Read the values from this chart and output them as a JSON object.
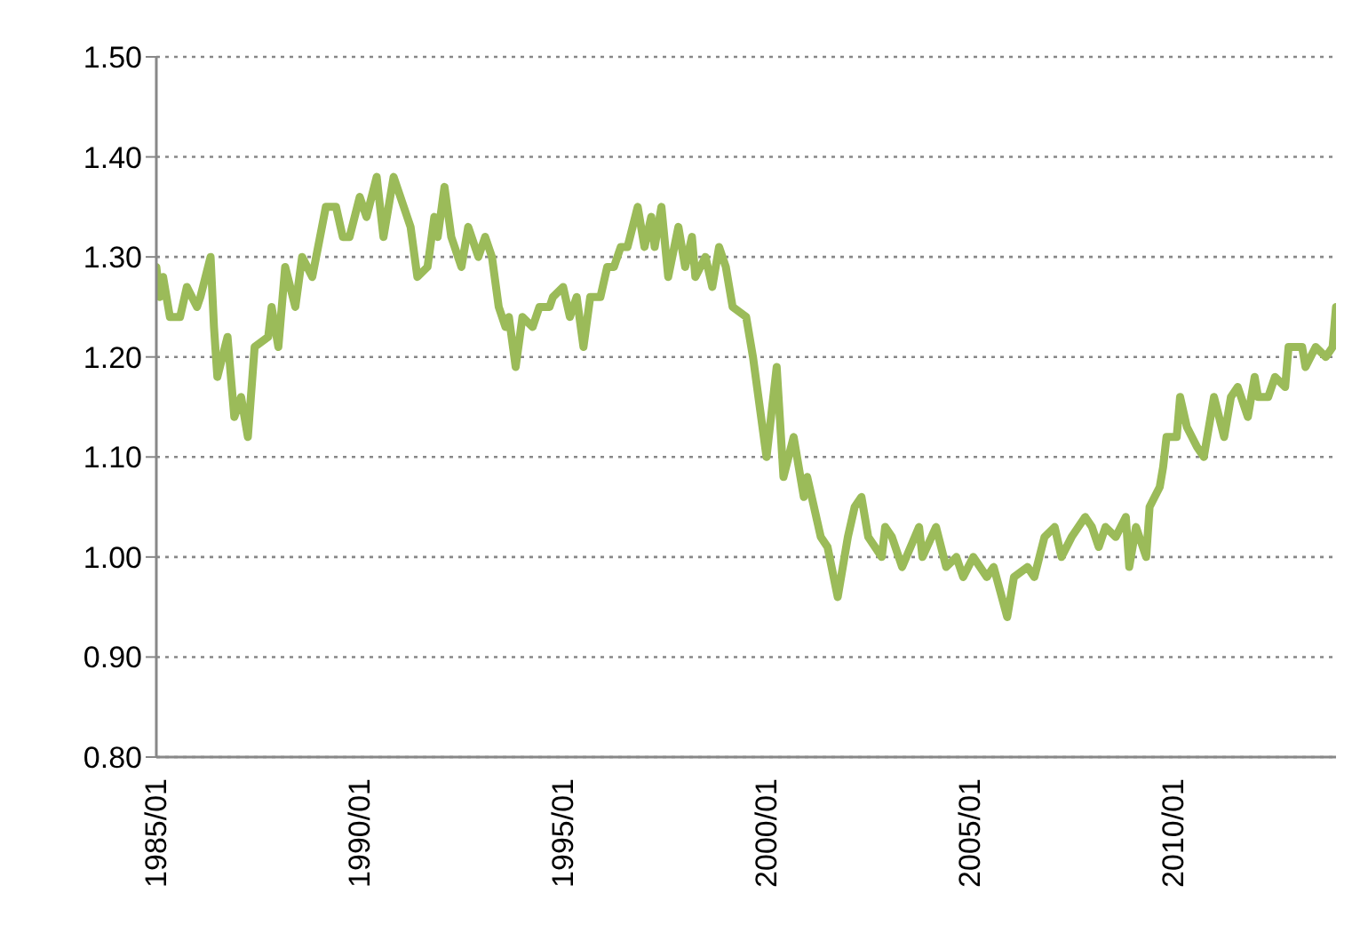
{
  "chart_data": {
    "type": "line",
    "x": [
      "1985-01",
      "1985-02",
      "1985-03",
      "1985-05",
      "1985-08",
      "1985-10",
      "1986-01",
      "1986-02",
      "1986-05",
      "1986-06",
      "1986-07",
      "1986-10",
      "1986-12",
      "1987-02",
      "1987-04",
      "1987-06",
      "1987-10",
      "1987-11",
      "1988-01",
      "1988-03",
      "1988-06",
      "1988-08",
      "1988-11",
      "1989-03",
      "1989-06",
      "1989-08",
      "1989-10",
      "1990-01",
      "1990-03",
      "1990-06",
      "1990-08",
      "1990-11",
      "1991-02",
      "1991-04",
      "1991-06",
      "1991-09",
      "1991-11",
      "1991-12",
      "1992-02",
      "1992-04",
      "1992-07",
      "1992-09",
      "1992-11",
      "1992-12",
      "1993-02",
      "1993-04",
      "1993-06",
      "1993-08",
      "1993-09",
      "1993-11",
      "1994-01",
      "1994-04",
      "1994-06",
      "1994-09",
      "1994-10",
      "1995-01",
      "1995-03",
      "1995-05",
      "1995-07",
      "1995-09",
      "1995-12",
      "1996-02",
      "1996-04",
      "1996-06",
      "1996-08",
      "1996-11",
      "1997-01",
      "1997-03",
      "1997-04",
      "1997-06",
      "1997-08",
      "1997-11",
      "1998-01",
      "1998-03",
      "1998-04",
      "1998-07",
      "1998-09",
      "1998-11",
      "1999-01",
      "1999-03",
      "1999-07",
      "1999-09",
      "2000-01",
      "2000-04",
      "2000-06",
      "2000-09",
      "2000-12",
      "2001-01",
      "2001-05",
      "2001-07",
      "2001-10",
      "2002-01",
      "2002-03",
      "2002-05",
      "2002-07",
      "2002-11",
      "2002-12",
      "2003-02",
      "2003-05",
      "2003-10",
      "2003-11",
      "2004-03",
      "2004-06",
      "2004-09",
      "2004-11",
      "2005-02",
      "2005-06",
      "2005-08",
      "2005-12",
      "2006-02",
      "2006-06",
      "2006-08",
      "2006-11",
      "2007-02",
      "2007-04",
      "2007-07",
      "2007-11",
      "2008-01",
      "2008-03",
      "2008-05",
      "2008-08",
      "2008-11",
      "2008-12",
      "2009-02",
      "2009-05",
      "2009-06",
      "2009-09",
      "2009-10",
      "2009-11",
      "2010-02",
      "2010-03",
      "2010-05",
      "2010-08",
      "2010-10",
      "2011-01",
      "2011-04",
      "2011-06",
      "2011-08",
      "2011-11",
      "2012-01",
      "2012-02",
      "2012-05",
      "2012-07",
      "2012-10",
      "2012-11",
      "2013-03",
      "2013-04",
      "2013-07",
      "2013-10",
      "2013-12",
      "2014-01"
    ],
    "series": [
      {
        "color": "#9bbb59",
        "values": [
          1.29,
          1.26,
          1.28,
          1.24,
          1.24,
          1.27,
          1.25,
          1.26,
          1.3,
          1.23,
          1.18,
          1.22,
          1.14,
          1.16,
          1.12,
          1.21,
          1.22,
          1.25,
          1.21,
          1.29,
          1.25,
          1.3,
          1.28,
          1.35,
          1.35,
          1.32,
          1.32,
          1.36,
          1.34,
          1.38,
          1.32,
          1.38,
          1.35,
          1.33,
          1.28,
          1.29,
          1.34,
          1.32,
          1.37,
          1.32,
          1.29,
          1.33,
          1.31,
          1.3,
          1.32,
          1.3,
          1.25,
          1.23,
          1.24,
          1.19,
          1.24,
          1.23,
          1.25,
          1.25,
          1.26,
          1.27,
          1.24,
          1.26,
          1.21,
          1.26,
          1.26,
          1.29,
          1.29,
          1.31,
          1.31,
          1.35,
          1.31,
          1.34,
          1.31,
          1.35,
          1.28,
          1.33,
          1.29,
          1.32,
          1.28,
          1.3,
          1.27,
          1.31,
          1.29,
          1.25,
          1.24,
          1.2,
          1.1,
          1.19,
          1.08,
          1.12,
          1.06,
          1.08,
          1.02,
          1.01,
          0.96,
          1.02,
          1.05,
          1.06,
          1.02,
          1.0,
          1.03,
          1.02,
          0.99,
          1.03,
          1.0,
          1.03,
          0.99,
          1.0,
          0.98,
          1.0,
          0.98,
          0.99,
          0.94,
          0.98,
          0.99,
          0.98,
          1.02,
          1.03,
          1.0,
          1.02,
          1.04,
          1.03,
          1.01,
          1.03,
          1.02,
          1.04,
          0.99,
          1.03,
          1.0,
          1.05,
          1.07,
          1.09,
          1.12,
          1.12,
          1.16,
          1.13,
          1.11,
          1.1,
          1.16,
          1.12,
          1.16,
          1.17,
          1.14,
          1.18,
          1.16,
          1.16,
          1.18,
          1.17,
          1.21,
          1.21,
          1.19,
          1.21,
          1.2,
          1.21,
          1.25
        ]
      }
    ],
    "xlim": [
      "1985-01",
      "2014-01"
    ],
    "xticks": [
      {
        "value": "1985-01",
        "label": "1985/01"
      },
      {
        "value": "1990-01",
        "label": "1990/01"
      },
      {
        "value": "1995-01",
        "label": "1995/01"
      },
      {
        "value": "2000-01",
        "label": "2000/01"
      },
      {
        "value": "2005-01",
        "label": "2005/01"
      },
      {
        "value": "2010-01",
        "label": "2010/01"
      }
    ],
    "ylim": [
      0.8,
      1.5
    ],
    "yticks": [
      {
        "value": 0.8,
        "label": "0.80"
      },
      {
        "value": 0.9,
        "label": "0.90"
      },
      {
        "value": 1.0,
        "label": "1.00"
      },
      {
        "value": 1.1,
        "label": "1.10"
      },
      {
        "value": 1.2,
        "label": "1.20"
      },
      {
        "value": 1.3,
        "label": "1.30"
      },
      {
        "value": 1.4,
        "label": "1.40"
      },
      {
        "value": 1.5,
        "label": "1.50"
      }
    ],
    "grid": "y",
    "marker": "none",
    "line_style": "solid",
    "legend": false
  }
}
